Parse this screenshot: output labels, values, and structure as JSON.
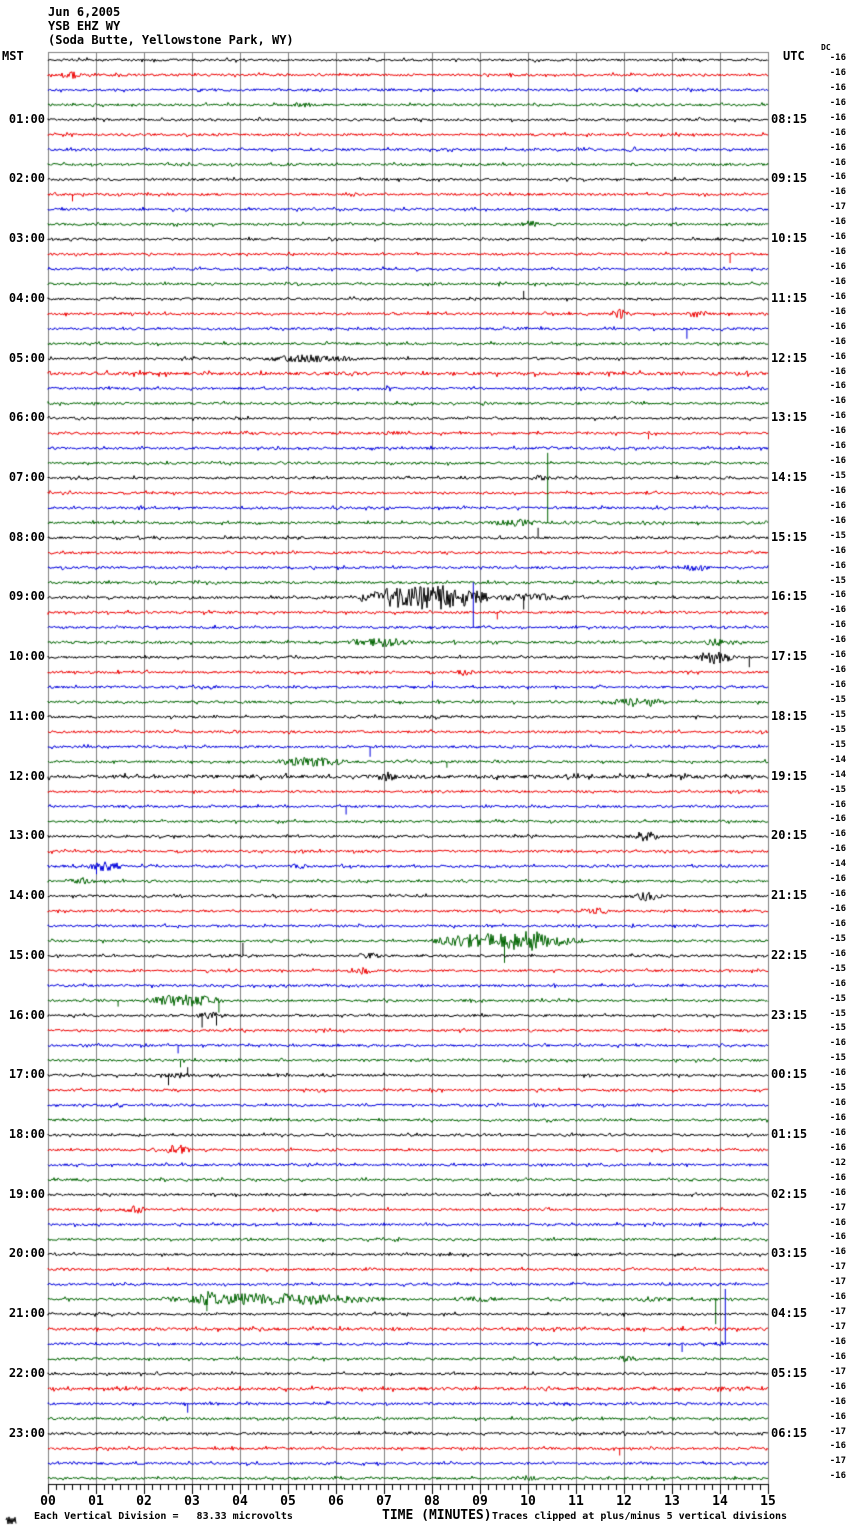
{
  "header": {
    "date": "Jun 6,2005",
    "station": "YSB EHZ WY",
    "location": "(Soda Butte, Yellowstone Park, WY)"
  },
  "labels": {
    "left_timezone": "MST",
    "right_timezone": "UTC",
    "dc_column": "DC"
  },
  "footer": {
    "scale_text": "Each Vertical Division =   83.33 microvolts",
    "xlabel": "TIME (MINUTES)",
    "clip_text": "Traces clipped at plus/minus 5 vertical divisions"
  },
  "colors": {
    "trace_cycle": [
      "#000000",
      "#ee0000",
      "#0000dd",
      "#006400"
    ],
    "grid": "#808080",
    "axis": "#000000",
    "background": "#ffffff"
  },
  "chart_data": {
    "type": "line",
    "title": "Helicorder webicorder record YSB EHZ WY Jun 6,2005",
    "x_axis": {
      "label": "TIME (MINUTES)",
      "min": 0,
      "max": 15,
      "tick_labels": [
        "00",
        "01",
        "02",
        "03",
        "04",
        "05",
        "06",
        "07",
        "08",
        "09",
        "10",
        "11",
        "12",
        "13",
        "14",
        "15"
      ],
      "grid": true
    },
    "rows": 96,
    "minutes_per_row": 15,
    "row_color_cycle": [
      "black",
      "red",
      "blue",
      "green"
    ],
    "left_hour_labels": [
      "01:00",
      "02:00",
      "03:00",
      "04:00",
      "05:00",
      "06:00",
      "07:00",
      "08:00",
      "09:00",
      "10:00",
      "11:00",
      "12:00",
      "13:00",
      "14:00",
      "15:00",
      "16:00",
      "17:00",
      "18:00",
      "19:00",
      "20:00",
      "21:00",
      "22:00",
      "23:00"
    ],
    "right_hour_labels": [
      "08:15",
      "09:15",
      "10:15",
      "11:15",
      "12:15",
      "13:15",
      "14:15",
      "15:15",
      "16:15",
      "17:15",
      "18:15",
      "19:15",
      "20:15",
      "21:15",
      "22:15",
      "23:15",
      "00:15",
      "01:15",
      "02:15",
      "03:15",
      "04:15",
      "05:15",
      "06:15"
    ],
    "dc_offsets": [
      -16,
      -16,
      -16,
      -16,
      -16,
      -16,
      -16,
      -16,
      -16,
      -16,
      -17,
      -16,
      -16,
      -16,
      -16,
      -16,
      -16,
      -16,
      -16,
      -16,
      -16,
      -16,
      -16,
      -16,
      -16,
      -16,
      -16,
      -16,
      -15,
      -16,
      -16,
      -16,
      -15,
      -16,
      -16,
      -15,
      -16,
      -16,
      -16,
      -16,
      -16,
      -16,
      -16,
      -15,
      -15,
      -15,
      -15,
      -14,
      -14,
      -15,
      -16,
      -16,
      -16,
      -16,
      -14,
      -16,
      -16,
      -16,
      -16,
      -15,
      -16,
      -15,
      -16,
      -15,
      -15,
      -15,
      -16,
      -15,
      -16,
      -15,
      -16,
      -16,
      -16,
      -16,
      -12,
      -16,
      -16,
      -17,
      -16,
      -16,
      -16,
      -17,
      -17,
      -16,
      -17,
      -17,
      -16,
      -16,
      -17,
      -16,
      -16,
      -16,
      -17,
      -16,
      -17,
      -16
    ],
    "events": [
      {
        "row": 2,
        "type": "burst",
        "start": 0.25,
        "end": 0.7,
        "amp": 5
      },
      {
        "row": 3,
        "type": "burst",
        "start": 5.3,
        "end": 5.8,
        "amp": 2.5
      },
      {
        "row": 4,
        "type": "burst",
        "start": 5.0,
        "end": 5.6,
        "amp": 2.5
      },
      {
        "row": 7,
        "type": "burst",
        "start": 12.0,
        "end": 12.4,
        "amp": 3
      },
      {
        "row": 10,
        "type": "spike",
        "at": 0.5,
        "amp": -7
      },
      {
        "row": 12,
        "type": "burst",
        "start": 9.8,
        "end": 10.3,
        "amp": 3.5
      },
      {
        "row": 14,
        "type": "spike",
        "at": 14.2,
        "amp": -9
      },
      {
        "row": 17,
        "type": "spike",
        "at": 9.9,
        "amp": 8
      },
      {
        "row": 18,
        "type": "burst",
        "start": 11.7,
        "end": 12.2,
        "amp": 5
      },
      {
        "row": 18,
        "type": "burst",
        "start": 13.3,
        "end": 13.7,
        "amp": 4
      },
      {
        "row": 19,
        "type": "spike",
        "at": 13.3,
        "amp": -10
      },
      {
        "row": 21,
        "type": "burst",
        "start": 4.4,
        "end": 6.5,
        "amp": 4
      },
      {
        "row": 22,
        "type": "noise",
        "scale": 1.4
      },
      {
        "row": 23,
        "type": "burst",
        "start": 6.8,
        "end": 7.3,
        "amp": 3
      },
      {
        "row": 26,
        "type": "burst",
        "start": 7.0,
        "end": 7.5,
        "amp": 3
      },
      {
        "row": 26,
        "type": "spike",
        "at": 12.5,
        "amp": -6
      },
      {
        "row": 29,
        "type": "burst",
        "start": 10.0,
        "end": 10.5,
        "amp": 3
      },
      {
        "row": 32,
        "type": "burst",
        "start": 9.2,
        "end": 10.3,
        "amp": 4
      },
      {
        "row": 32,
        "type": "spike",
        "at": 10.4,
        "amp": 70
      },
      {
        "row": 33,
        "type": "spike",
        "at": 10.2,
        "amp": 10
      },
      {
        "row": 35,
        "type": "burst",
        "start": 13.2,
        "end": 13.8,
        "amp": 4
      },
      {
        "row": 37,
        "type": "burst",
        "start": 6.5,
        "end": 9.2,
        "amp": 13
      },
      {
        "row": 37,
        "type": "burst",
        "start": 9.2,
        "end": 11.0,
        "amp": 4
      },
      {
        "row": 37,
        "type": "spike",
        "at": 9.9,
        "amp": -12
      },
      {
        "row": 38,
        "type": "spike",
        "at": 9.35,
        "amp": -7
      },
      {
        "row": 39,
        "type": "spike",
        "at": 8.85,
        "amp": 45
      },
      {
        "row": 40,
        "type": "burst",
        "start": 6.2,
        "end": 7.6,
        "amp": 5
      },
      {
        "row": 40,
        "type": "burst",
        "start": 13.6,
        "end": 14.4,
        "amp": 4
      },
      {
        "row": 41,
        "type": "burst",
        "start": 13.5,
        "end": 14.3,
        "amp": 7
      },
      {
        "row": 41,
        "type": "spike",
        "at": 14.6,
        "amp": -10
      },
      {
        "row": 42,
        "type": "burst",
        "start": 8.5,
        "end": 8.9,
        "amp": 4
      },
      {
        "row": 43,
        "type": "spike",
        "at": 8.0,
        "amp": 6
      },
      {
        "row": 44,
        "type": "burst",
        "start": 11.6,
        "end": 13.0,
        "amp": 5
      },
      {
        "row": 45,
        "type": "burst",
        "start": 7.7,
        "end": 8.3,
        "amp": 3
      },
      {
        "row": 47,
        "type": "spike",
        "at": 6.7,
        "amp": -10
      },
      {
        "row": 48,
        "type": "burst",
        "start": 4.7,
        "end": 6.3,
        "amp": 5
      },
      {
        "row": 48,
        "type": "spike",
        "at": 8.3,
        "amp": -6
      },
      {
        "row": 49,
        "type": "noise",
        "scale": 1.5
      },
      {
        "row": 49,
        "type": "burst",
        "start": 6.8,
        "end": 7.3,
        "amp": 5
      },
      {
        "row": 51,
        "type": "spike",
        "at": 6.2,
        "amp": -8
      },
      {
        "row": 53,
        "type": "burst",
        "start": 12.1,
        "end": 12.8,
        "amp": 5
      },
      {
        "row": 55,
        "type": "burst",
        "start": 0.8,
        "end": 1.6,
        "amp": 5
      },
      {
        "row": 55,
        "type": "spike",
        "at": 1.0,
        "amp": -8
      },
      {
        "row": 55,
        "type": "burst",
        "start": 5.0,
        "end": 5.5,
        "amp": 3
      },
      {
        "row": 56,
        "type": "burst",
        "start": 0.4,
        "end": 1.0,
        "amp": 4
      },
      {
        "row": 57,
        "type": "burst",
        "start": 12.1,
        "end": 12.8,
        "amp": 5
      },
      {
        "row": 58,
        "type": "burst",
        "start": 11.2,
        "end": 11.7,
        "amp": 4
      },
      {
        "row": 60,
        "type": "burst",
        "start": 7.9,
        "end": 11.2,
        "amp": 8
      },
      {
        "row": 60,
        "type": "burst",
        "start": 9.5,
        "end": 10.4,
        "amp": 12
      },
      {
        "row": 60,
        "type": "spike",
        "at": 9.5,
        "amp": -22
      },
      {
        "row": 61,
        "type": "spike",
        "at": 4.05,
        "amp": 13
      },
      {
        "row": 61,
        "type": "burst",
        "start": 6.4,
        "end": 7.0,
        "amp": 3
      },
      {
        "row": 62,
        "type": "burst",
        "start": 6.2,
        "end": 6.8,
        "amp": 4
      },
      {
        "row": 64,
        "type": "burst",
        "start": 2.0,
        "end": 3.7,
        "amp": 6
      },
      {
        "row": 64,
        "type": "spike",
        "at": 3.55,
        "amp": -12
      },
      {
        "row": 64,
        "type": "spike",
        "at": 1.45,
        "amp": -6
      },
      {
        "row": 65,
        "type": "burst",
        "start": 3.0,
        "end": 3.7,
        "amp": 4
      },
      {
        "row": 65,
        "type": "spike",
        "at": 3.2,
        "amp": -12
      },
      {
        "row": 65,
        "type": "spike",
        "at": 3.5,
        "amp": -10
      },
      {
        "row": 67,
        "type": "spike",
        "at": 2.7,
        "amp": -8
      },
      {
        "row": 68,
        "type": "spike",
        "at": 2.75,
        "amp": -7
      },
      {
        "row": 69,
        "type": "burst",
        "start": 2.3,
        "end": 3.1,
        "amp": 3
      },
      {
        "row": 69,
        "type": "spike",
        "at": 2.5,
        "amp": -10
      },
      {
        "row": 69,
        "type": "spike",
        "at": 2.9,
        "amp": 8
      },
      {
        "row": 74,
        "type": "burst",
        "start": 2.4,
        "end": 3.0,
        "amp": 6
      },
      {
        "row": 78,
        "type": "burst",
        "start": 1.5,
        "end": 2.1,
        "amp": 4
      },
      {
        "row": 84,
        "type": "burst",
        "start": 2.3,
        "end": 7.0,
        "amp": 6
      },
      {
        "row": 84,
        "type": "burst",
        "start": 3.1,
        "end": 3.7,
        "amp": 9
      },
      {
        "row": 84,
        "type": "spike",
        "at": 3.3,
        "amp": -12
      },
      {
        "row": 84,
        "type": "burst",
        "start": 8.4,
        "end": 9.6,
        "amp": 3
      },
      {
        "row": 84,
        "type": "burst",
        "start": 12.1,
        "end": 13.1,
        "amp": 3
      },
      {
        "row": 84,
        "type": "spike",
        "at": 13.9,
        "amp": -25
      },
      {
        "row": 86,
        "type": "noise",
        "scale": 1.3
      },
      {
        "row": 87,
        "type": "spike",
        "at": 14.1,
        "amp": 55
      },
      {
        "row": 87,
        "type": "spike",
        "at": 13.2,
        "amp": -8
      },
      {
        "row": 88,
        "type": "burst",
        "start": 11.4,
        "end": 12.6,
        "amp": 3
      },
      {
        "row": 90,
        "type": "noise",
        "scale": 1.3
      },
      {
        "row": 90,
        "type": "burst",
        "start": 13.8,
        "end": 14.6,
        "amp": 3
      },
      {
        "row": 91,
        "type": "spike",
        "at": 2.9,
        "amp": -9
      },
      {
        "row": 94,
        "type": "spike",
        "at": 11.9,
        "amp": -7
      },
      {
        "row": 96,
        "type": "burst",
        "start": 9.6,
        "end": 10.3,
        "amp": 3
      }
    ]
  }
}
